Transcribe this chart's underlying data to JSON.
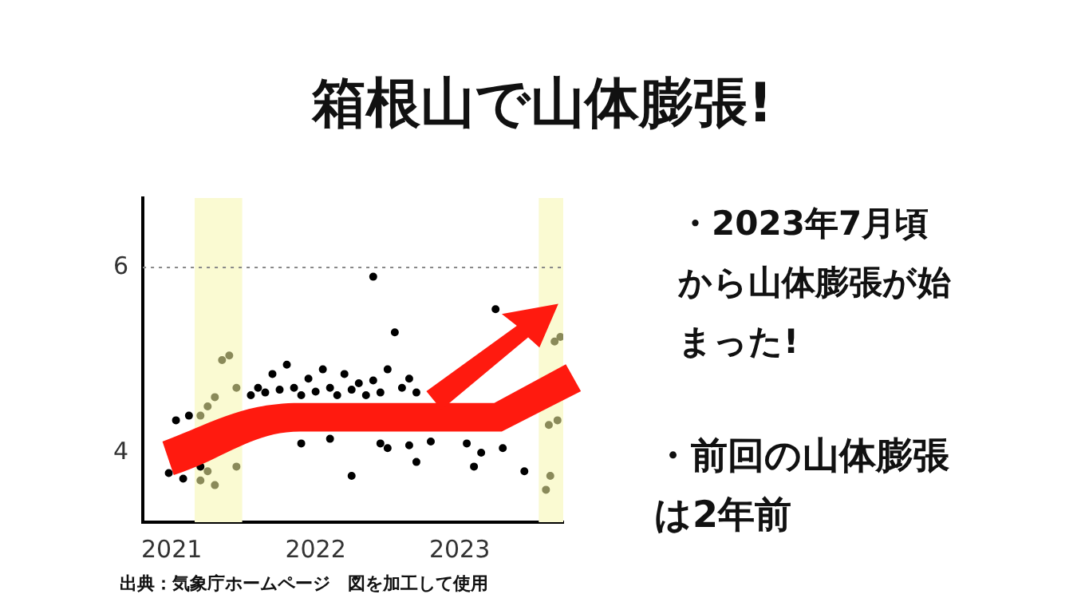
{
  "chart_data": {
    "type": "scatter",
    "title": "箱根山で山体膨張!",
    "annotations": [
      "・2023年7月頃から山体膨張が始まった!",
      "・前回の山体膨張は2年前",
      "出典：気象庁ホームページ　図を加工して使用"
    ],
    "series": [
      {
        "color": "#000000",
        "x": [
          2020.98,
          2021.03,
          2021.08,
          2021.12,
          2021.2,
          2021.55,
          2021.6,
          2021.65,
          2021.7,
          2021.75,
          2021.8,
          2021.85,
          2021.9,
          2021.95,
          2022.0,
          2022.05,
          2022.1,
          2022.15,
          2022.2,
          2022.25,
          2022.3,
          2022.35,
          2022.4,
          2022.45,
          2022.5,
          2022.55,
          2022.6,
          2022.65,
          2022.7,
          2022.4,
          2022.45,
          2022.5,
          2022.65,
          2022.7,
          2022.25,
          2022.1,
          2021.9,
          2023.05,
          2023.1,
          2023.15,
          2023.25,
          2023.3,
          2023.45,
          2022.8
        ],
        "values": [
          3.78,
          4.35,
          3.72,
          4.4,
          3.85,
          4.62,
          4.7,
          4.65,
          4.85,
          4.68,
          4.95,
          4.7,
          4.62,
          4.8,
          4.66,
          4.9,
          4.7,
          4.62,
          4.85,
          4.68,
          4.75,
          4.62,
          4.78,
          4.65,
          4.9,
          5.3,
          4.7,
          4.8,
          4.65,
          5.9,
          4.1,
          4.05,
          4.08,
          3.9,
          3.75,
          4.15,
          4.1,
          4.1,
          3.85,
          4.0,
          5.55,
          4.05,
          3.8,
          4.12
        ]
      },
      {
        "color": "#8a8a5a",
        "x": [
          2021.2,
          2021.25,
          2021.3,
          2021.35,
          2021.4,
          2021.45,
          2021.3,
          2021.25,
          2021.45,
          2021.2,
          2023.66,
          2023.7,
          2023.62,
          2023.68,
          2023.6,
          2023.63
        ],
        "values": [
          4.4,
          4.5,
          4.6,
          5.0,
          5.05,
          4.7,
          3.65,
          3.8,
          3.85,
          3.7,
          5.2,
          5.25,
          4.3,
          4.35,
          3.6,
          3.75
        ]
      }
    ],
    "xlim": [
      2020.8,
      2023.72
    ],
    "xticks": [
      2021,
      2022,
      2023
    ],
    "ylim": [
      3.25,
      6.75
    ],
    "yticks": [
      4,
      6
    ],
    "bands": [
      {
        "axis": "x",
        "from": 2021.16,
        "to": 2021.49,
        "color": "#fafad2"
      },
      {
        "axis": "x",
        "from": 2023.55,
        "to": 2023.72,
        "color": "#fafad2"
      }
    ],
    "ref_lines": [
      {
        "axis": "y",
        "value": 6,
        "color": "#888888",
        "line_style": "dotted"
      }
    ],
    "marker": "circle",
    "grid": false,
    "legend": false
  }
}
